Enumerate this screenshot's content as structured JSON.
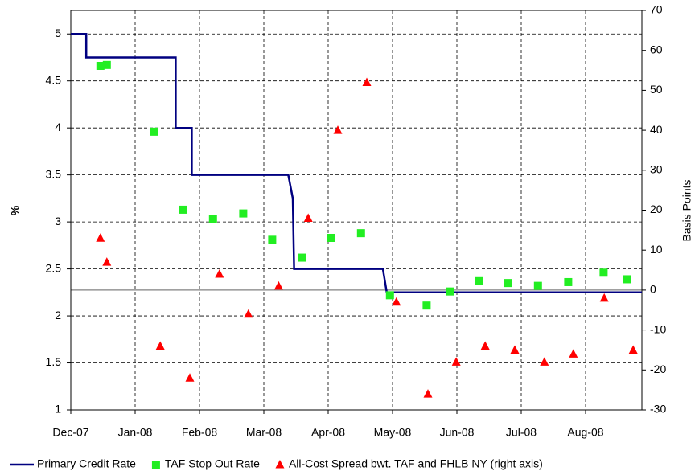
{
  "chart_data": {
    "type": "combo",
    "ylabel": "%",
    "y2label": "Basis Points",
    "xlim": [
      0,
      8.875
    ],
    "xticks": [
      {
        "value": 0,
        "label": "Dec-07"
      },
      {
        "value": 1,
        "label": "Jan-08"
      },
      {
        "value": 2,
        "label": "Feb-08"
      },
      {
        "value": 3,
        "label": "Mar-08"
      },
      {
        "value": 4,
        "label": "Apr-08"
      },
      {
        "value": 5,
        "label": "May-08"
      },
      {
        "value": 6,
        "label": "Jun-08"
      },
      {
        "value": 7,
        "label": "Jul-08"
      },
      {
        "value": 8,
        "label": "Aug-08"
      }
    ],
    "ylim": [
      1,
      5.25
    ],
    "yticks": [
      1,
      1.5,
      2,
      2.5,
      3,
      3.5,
      4,
      4.5,
      5
    ],
    "y2lim": [
      -30,
      70
    ],
    "y2ticks": [
      -30,
      -20,
      -10,
      0,
      10,
      20,
      30,
      40,
      50,
      60,
      70
    ],
    "grid": true,
    "legend": "bottom",
    "series": [
      {
        "name": "Primary Credit Rate",
        "type": "line",
        "color": "#000080",
        "x": [
          0,
          0.24,
          0.24,
          1.63,
          1.63,
          1.88,
          1.88,
          3.38,
          3.45,
          3.47,
          4.85,
          4.91,
          8.875
        ],
        "values": [
          5,
          5,
          4.75,
          4.75,
          4,
          4,
          3.5,
          3.5,
          3.25,
          2.5,
          2.5,
          2.25,
          2.25
        ]
      },
      {
        "name": "TAF Stop Out Rate",
        "type": "square",
        "color": "#22ee22",
        "x": [
          0.46,
          0.56,
          1.29,
          1.75,
          2.21,
          2.68,
          3.13,
          3.59,
          4.04,
          4.51,
          4.96,
          5.53,
          5.89,
          6.35,
          6.8,
          7.26,
          7.73,
          8.28,
          8.64
        ],
        "values": [
          4.66,
          4.67,
          3.96,
          3.13,
          3.03,
          3.09,
          2.81,
          2.62,
          2.83,
          2.88,
          2.22,
          2.11,
          2.26,
          2.37,
          2.35,
          2.32,
          2.36,
          2.46,
          2.39
        ]
      },
      {
        "name": "All-Cost Spread bwt. TAF and FHLB NY (right axis)",
        "type": "triangle",
        "color": "#ff0000",
        "axis": "y2",
        "x": [
          0.46,
          0.56,
          1.39,
          1.85,
          2.31,
          2.76,
          3.23,
          3.69,
          4.15,
          4.6,
          5.06,
          5.55,
          5.99,
          6.44,
          6.9,
          7.36,
          7.81,
          8.29,
          8.74
        ],
        "values": [
          13,
          7,
          -14,
          -22,
          4,
          -6,
          1,
          18,
          40,
          52,
          -3,
          -26,
          -18,
          -14,
          -15,
          -18,
          -16,
          -2,
          -15
        ]
      }
    ]
  }
}
